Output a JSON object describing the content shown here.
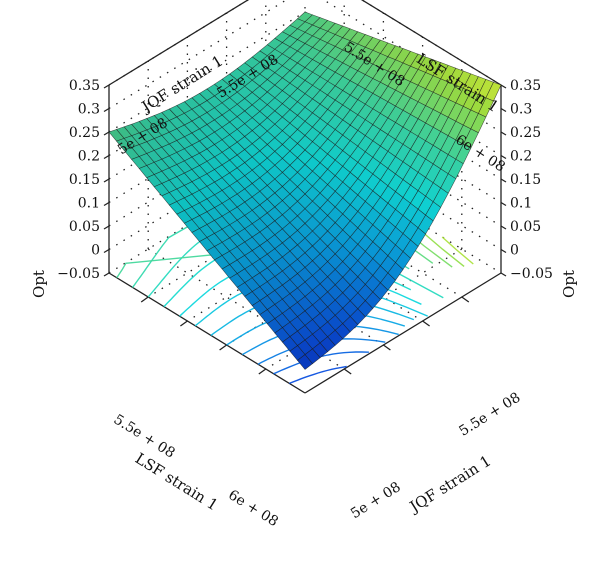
{
  "chart_data": {
    "type": "surface",
    "title": "",
    "zlabel": "Opt",
    "zlim": [
      -0.05,
      0.35
    ],
    "z_ticks": [
      "−0.05",
      "0",
      "0.05",
      "0.1",
      "0.15",
      "0.2",
      "0.25",
      "0.3",
      "0.35"
    ],
    "axis_lsf": {
      "label": "LSF strain 1",
      "range": [
        480000000.0,
        620000000.0
      ],
      "ticks": [
        "5.5e + 08",
        "6e + 08"
      ],
      "front_ticks": [
        "5.5e + 08",
        "6e + 08"
      ]
    },
    "axis_jqf": {
      "label": "JQF strain 1",
      "range": [
        480000000.0,
        570000000.0
      ],
      "ticks": [
        "5e + 08",
        "5.5e + 08"
      ],
      "front_ticks": [
        "5e + 08",
        "5.5e + 08"
      ]
    },
    "corner_values": {
      "lsf_low_jqf_low": 0.25,
      "lsf_low_jqf_high": 0.25,
      "lsf_high_jqf_low": 0.0,
      "lsf_high_jqf_high": 0.35
    },
    "colormap": [
      "#0a10b4",
      "#0a50e0",
      "#0aa0e6",
      "#10dcdc",
      "#40d8a0",
      "#a0e040",
      "#f0f030"
    ],
    "contours": true,
    "grid": true
  }
}
